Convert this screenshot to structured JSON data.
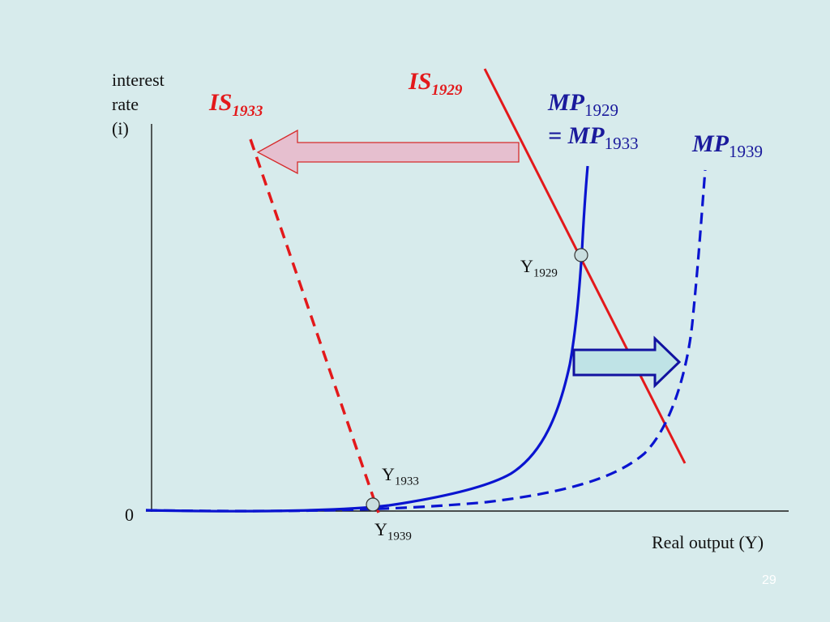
{
  "y_axis_label": [
    "interest",
    "rate",
    "(i)"
  ],
  "x_axis_label": "Real output (Y)",
  "origin_label": "0",
  "curves": {
    "is1929": {
      "main": "IS",
      "sub": "1929",
      "color": "#e3191b"
    },
    "is1933": {
      "main": "IS",
      "sub": "1933",
      "color": "#e3191b"
    },
    "mp1929": {
      "main": "MP",
      "sub": "1929",
      "color": "#1a1a9c"
    },
    "mp1933": {
      "prefix": "= ",
      "main": "MP",
      "sub": "1933",
      "color": "#1a1a9c"
    },
    "mp1939": {
      "main": "MP",
      "sub": "1939",
      "color": "#1a1a9c"
    }
  },
  "points": {
    "y1929": {
      "main": "Y",
      "sub": "1929"
    },
    "y1933": {
      "main": "Y",
      "sub": "1933"
    },
    "y1939": {
      "main": "Y",
      "sub": "1939"
    }
  },
  "colors": {
    "background": "#d7ebec",
    "is_curve": "#e3191b",
    "mp_curve": "#0a14d0",
    "left_arrow_fill": "#e6bfcf",
    "right_arrow_fill": "#bfe3e6",
    "point_fill": "#c9dedf"
  },
  "page_number": "29"
}
